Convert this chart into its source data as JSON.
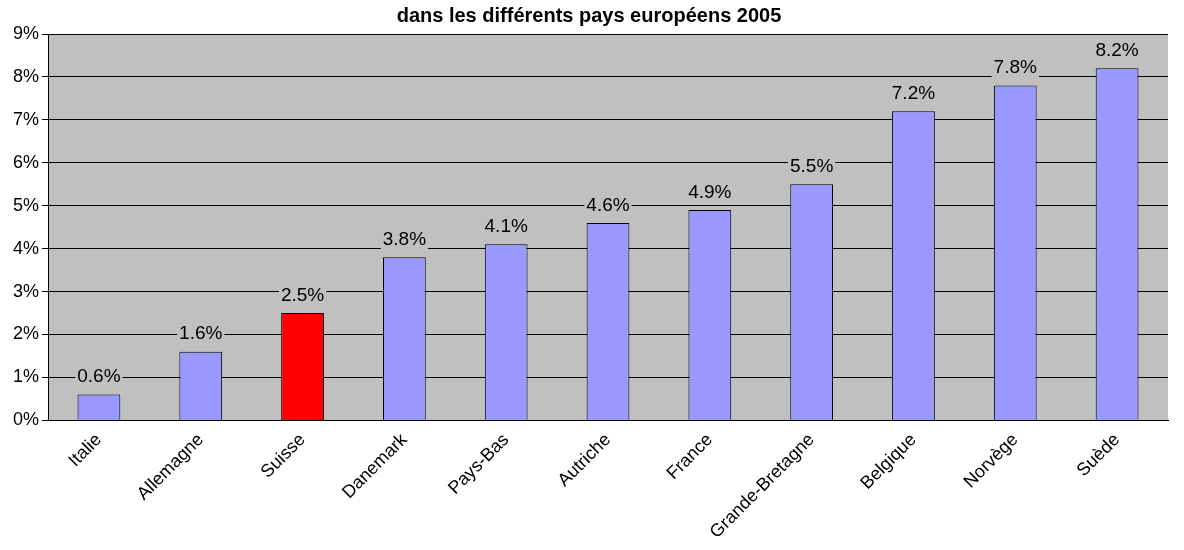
{
  "chart_data": {
    "type": "bar",
    "title": "dans les différents pays européens 2005",
    "categories": [
      "Italie",
      "Allemagne",
      "Suisse",
      "Danemark",
      "Pays-Bas",
      "Autriche",
      "France",
      "Grande-Bretagne",
      "Belgique",
      "Norvège",
      "Suède"
    ],
    "values": [
      0.6,
      1.6,
      2.5,
      3.8,
      4.1,
      4.6,
      4.9,
      5.5,
      7.2,
      7.8,
      8.2
    ],
    "value_labels": [
      "0.6%",
      "1.6%",
      "2.5%",
      "3.8%",
      "4.1%",
      "4.6%",
      "4.9%",
      "5.5%",
      "7.2%",
      "7.8%",
      "8.2%"
    ],
    "colors": [
      "#9999ff",
      "#9999ff",
      "#ff0000",
      "#9999ff",
      "#9999ff",
      "#9999ff",
      "#9999ff",
      "#9999ff",
      "#9999ff",
      "#9999ff",
      "#9999ff"
    ],
    "ylim": [
      0,
      9
    ],
    "yticks": [
      {
        "value": 0,
        "label": "0%"
      },
      {
        "value": 1,
        "label": "1%"
      },
      {
        "value": 2,
        "label": "2%"
      },
      {
        "value": 3,
        "label": "3%"
      },
      {
        "value": 4,
        "label": "4%"
      },
      {
        "value": 5,
        "label": "5%"
      },
      {
        "value": 6,
        "label": "6%"
      },
      {
        "value": 7,
        "label": "7%"
      },
      {
        "value": 8,
        "label": "8%"
      },
      {
        "value": 9,
        "label": "9%"
      }
    ],
    "grid": "y",
    "legend": false
  }
}
